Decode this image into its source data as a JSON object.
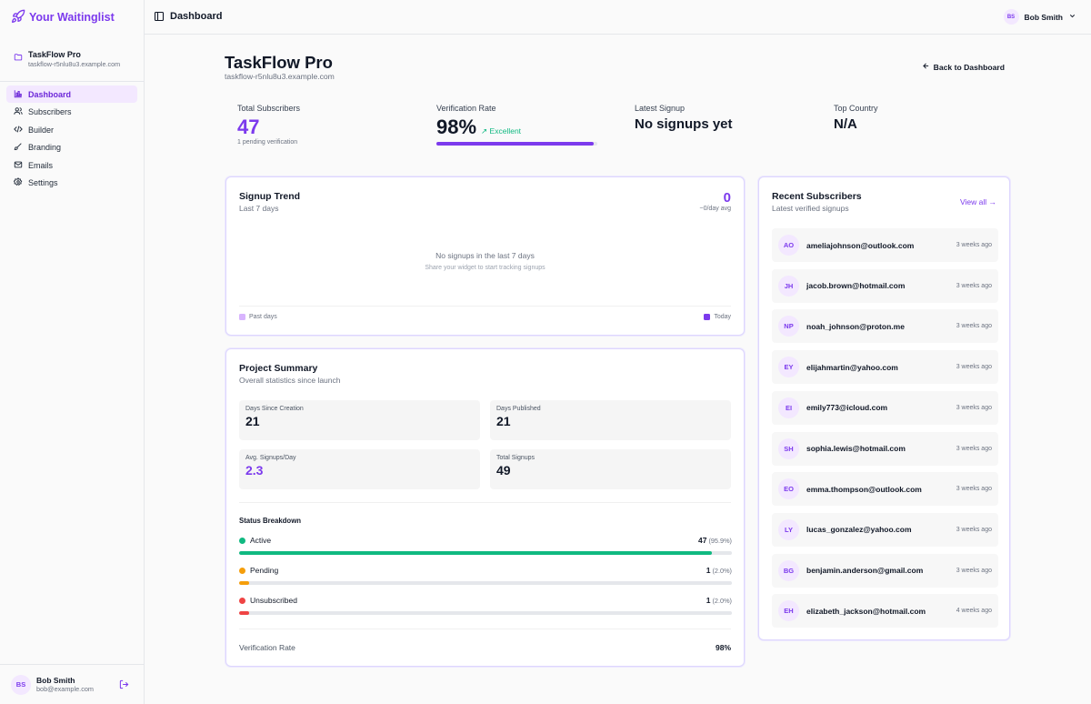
{
  "brand": {
    "name": "Your Waitinglist",
    "accent": "#7c3aed"
  },
  "project": {
    "name": "TaskFlow Pro",
    "domain": "taskflow-r5nlu8u3.example.com"
  },
  "nav": [
    {
      "label": "Dashboard",
      "icon": "bar-chart-icon"
    },
    {
      "label": "Subscribers",
      "icon": "users-icon"
    },
    {
      "label": "Builder",
      "icon": "code-icon"
    },
    {
      "label": "Branding",
      "icon": "brush-icon"
    },
    {
      "label": "Emails",
      "icon": "mail-icon"
    },
    {
      "label": "Settings",
      "icon": "gear-icon"
    }
  ],
  "user": {
    "initials": "BS",
    "name": "Bob Smith",
    "email": "bob@example.com"
  },
  "topbar": {
    "title": "Dashboard"
  },
  "header": {
    "title": "TaskFlow Pro",
    "domain": "taskflow-r5nlu8u3.example.com",
    "back_label": "Back to Dashboard"
  },
  "stats": {
    "total": {
      "label": "Total Subscribers",
      "value": "47",
      "sub": "1 pending verification"
    },
    "verification": {
      "label": "Verification Rate",
      "value": "98%",
      "badge": "Excellent",
      "fraction": 0.98
    },
    "latest": {
      "label": "Latest Signup",
      "value": "No signups yet"
    },
    "country": {
      "label": "Top Country",
      "value": "N/A"
    }
  },
  "trend": {
    "title": "Signup Trend",
    "subtitle": "Last 7 days",
    "count": "0",
    "avg": "~0/day avg",
    "empty_title": "No signups in the last 7 days",
    "empty_sub": "Share your widget to start tracking signups",
    "legend_past": "Past days",
    "legend_today": "Today"
  },
  "summary": {
    "title": "Project Summary",
    "subtitle": "Overall statistics since launch",
    "metrics": [
      {
        "label": "Days Since Creation",
        "value": "21"
      },
      {
        "label": "Days Published",
        "value": "21"
      },
      {
        "label": "Avg. Signups/Day",
        "value": "2.3"
      },
      {
        "label": "Total Signups",
        "value": "49"
      }
    ],
    "breakdown_title": "Status Breakdown",
    "statuses": [
      {
        "label": "Active",
        "count": "47",
        "pct": "(95.9%)",
        "fraction": 0.959,
        "color": "#10b981"
      },
      {
        "label": "Pending",
        "count": "1",
        "pct": "(2.0%)",
        "fraction": 0.02,
        "color": "#f59e0b"
      },
      {
        "label": "Unsubscribed",
        "count": "1",
        "pct": "(2.0%)",
        "fraction": 0.02,
        "color": "#ef4444"
      }
    ],
    "verification_label": "Verification Rate",
    "verification_value": "98%"
  },
  "recent": {
    "title": "Recent Subscribers",
    "subtitle": "Latest verified signups",
    "view_all": "View all →",
    "items": [
      {
        "initials": "AO",
        "email": "ameliajohnson@outlook.com",
        "ago": "3 weeks ago"
      },
      {
        "initials": "JH",
        "email": "jacob.brown@hotmail.com",
        "ago": "3 weeks ago"
      },
      {
        "initials": "NP",
        "email": "noah_johnson@proton.me",
        "ago": "3 weeks ago"
      },
      {
        "initials": "EY",
        "email": "elijahmartin@yahoo.com",
        "ago": "3 weeks ago"
      },
      {
        "initials": "EI",
        "email": "emily773@icloud.com",
        "ago": "3 weeks ago"
      },
      {
        "initials": "SH",
        "email": "sophia.lewis@hotmail.com",
        "ago": "3 weeks ago"
      },
      {
        "initials": "EO",
        "email": "emma.thompson@outlook.com",
        "ago": "3 weeks ago"
      },
      {
        "initials": "LY",
        "email": "lucas_gonzalez@yahoo.com",
        "ago": "3 weeks ago"
      },
      {
        "initials": "BG",
        "email": "benjamin.anderson@gmail.com",
        "ago": "3 weeks ago"
      },
      {
        "initials": "EH",
        "email": "elizabeth_jackson@hotmail.com",
        "ago": "4 weeks ago"
      }
    ]
  }
}
